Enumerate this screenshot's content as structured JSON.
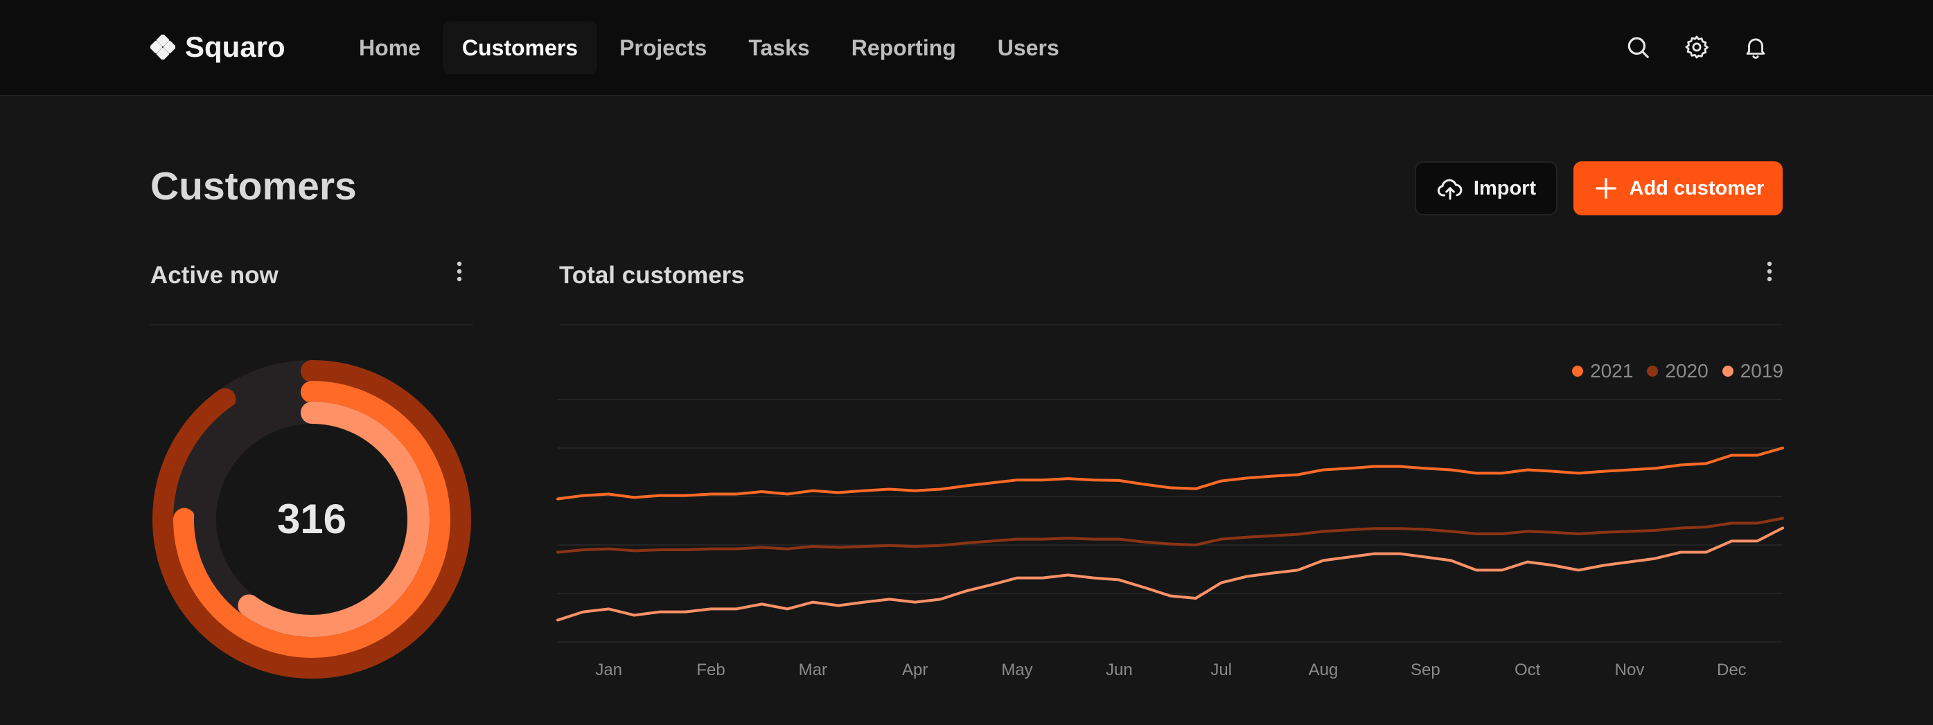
{
  "app": {
    "brand": "Squaro",
    "nav": [
      "Home",
      "Customers",
      "Projects",
      "Tasks",
      "Reporting",
      "Users"
    ],
    "active_nav": 1,
    "header_icons": [
      "search-icon",
      "gear-icon",
      "bell-icon"
    ]
  },
  "page": {
    "title": "Customers",
    "import_label": "Import",
    "add_label": "Add customer"
  },
  "active_card": {
    "title": "Active now",
    "value": "316",
    "rings": [
      {
        "color": "#9a300b",
        "fraction": 0.9
      },
      {
        "color": "#ff6a26",
        "fraction": 0.75
      },
      {
        "color": "#ff9166",
        "fraction": 0.6
      }
    ]
  },
  "total_card": {
    "title": "Total customers"
  },
  "colors": {
    "accent": "#ff5311",
    "series_2021": "#ff6a26",
    "series_2020": "#8c3414",
    "series_2019": "#ff9166"
  },
  "chart_data": {
    "type": "line",
    "months": [
      "Jan",
      "Feb",
      "Mar",
      "Apr",
      "May",
      "Jun",
      "Jul",
      "Aug",
      "Sep",
      "Oct",
      "Nov",
      "Dec"
    ],
    "ylim": [
      0,
      5
    ],
    "grid": true,
    "legend_position": "top-right",
    "series": [
      {
        "name": "2021",
        "color": "#ff6a26",
        "values": [
          2.95,
          3.02,
          3.05,
          2.98,
          3.02,
          3.02,
          3.05,
          3.05,
          3.1,
          3.05,
          3.12,
          3.08,
          3.12,
          3.15,
          3.12,
          3.15,
          3.22,
          3.28,
          3.34,
          3.34,
          3.37,
          3.34,
          3.33,
          3.25,
          3.18,
          3.16,
          3.32,
          3.38,
          3.42,
          3.45,
          3.55,
          3.58,
          3.62,
          3.62,
          3.58,
          3.55,
          3.48,
          3.48,
          3.55,
          3.52,
          3.48,
          3.52,
          3.55,
          3.58,
          3.65,
          3.68,
          3.85,
          3.85,
          4.0
        ]
      },
      {
        "name": "2020",
        "color": "#8c3414",
        "values": [
          1.85,
          1.9,
          1.92,
          1.88,
          1.9,
          1.9,
          1.92,
          1.92,
          1.95,
          1.92,
          1.97,
          1.95,
          1.97,
          1.99,
          1.97,
          1.99,
          2.04,
          2.08,
          2.12,
          2.12,
          2.14,
          2.12,
          2.12,
          2.06,
          2.02,
          2.0,
          2.12,
          2.16,
          2.19,
          2.22,
          2.28,
          2.31,
          2.34,
          2.34,
          2.32,
          2.28,
          2.23,
          2.23,
          2.28,
          2.26,
          2.23,
          2.26,
          2.28,
          2.3,
          2.35,
          2.37,
          2.45,
          2.45,
          2.55
        ]
      },
      {
        "name": "2019",
        "color": "#ff9166",
        "values": [
          0.45,
          0.62,
          0.68,
          0.55,
          0.62,
          0.62,
          0.68,
          0.68,
          0.78,
          0.68,
          0.82,
          0.75,
          0.82,
          0.88,
          0.82,
          0.88,
          1.05,
          1.18,
          1.32,
          1.32,
          1.38,
          1.32,
          1.28,
          1.12,
          0.95,
          0.9,
          1.22,
          1.35,
          1.42,
          1.48,
          1.68,
          1.75,
          1.82,
          1.82,
          1.75,
          1.68,
          1.48,
          1.48,
          1.65,
          1.58,
          1.48,
          1.58,
          1.65,
          1.72,
          1.85,
          1.85,
          2.08,
          2.08,
          2.35
        ]
      }
    ]
  }
}
